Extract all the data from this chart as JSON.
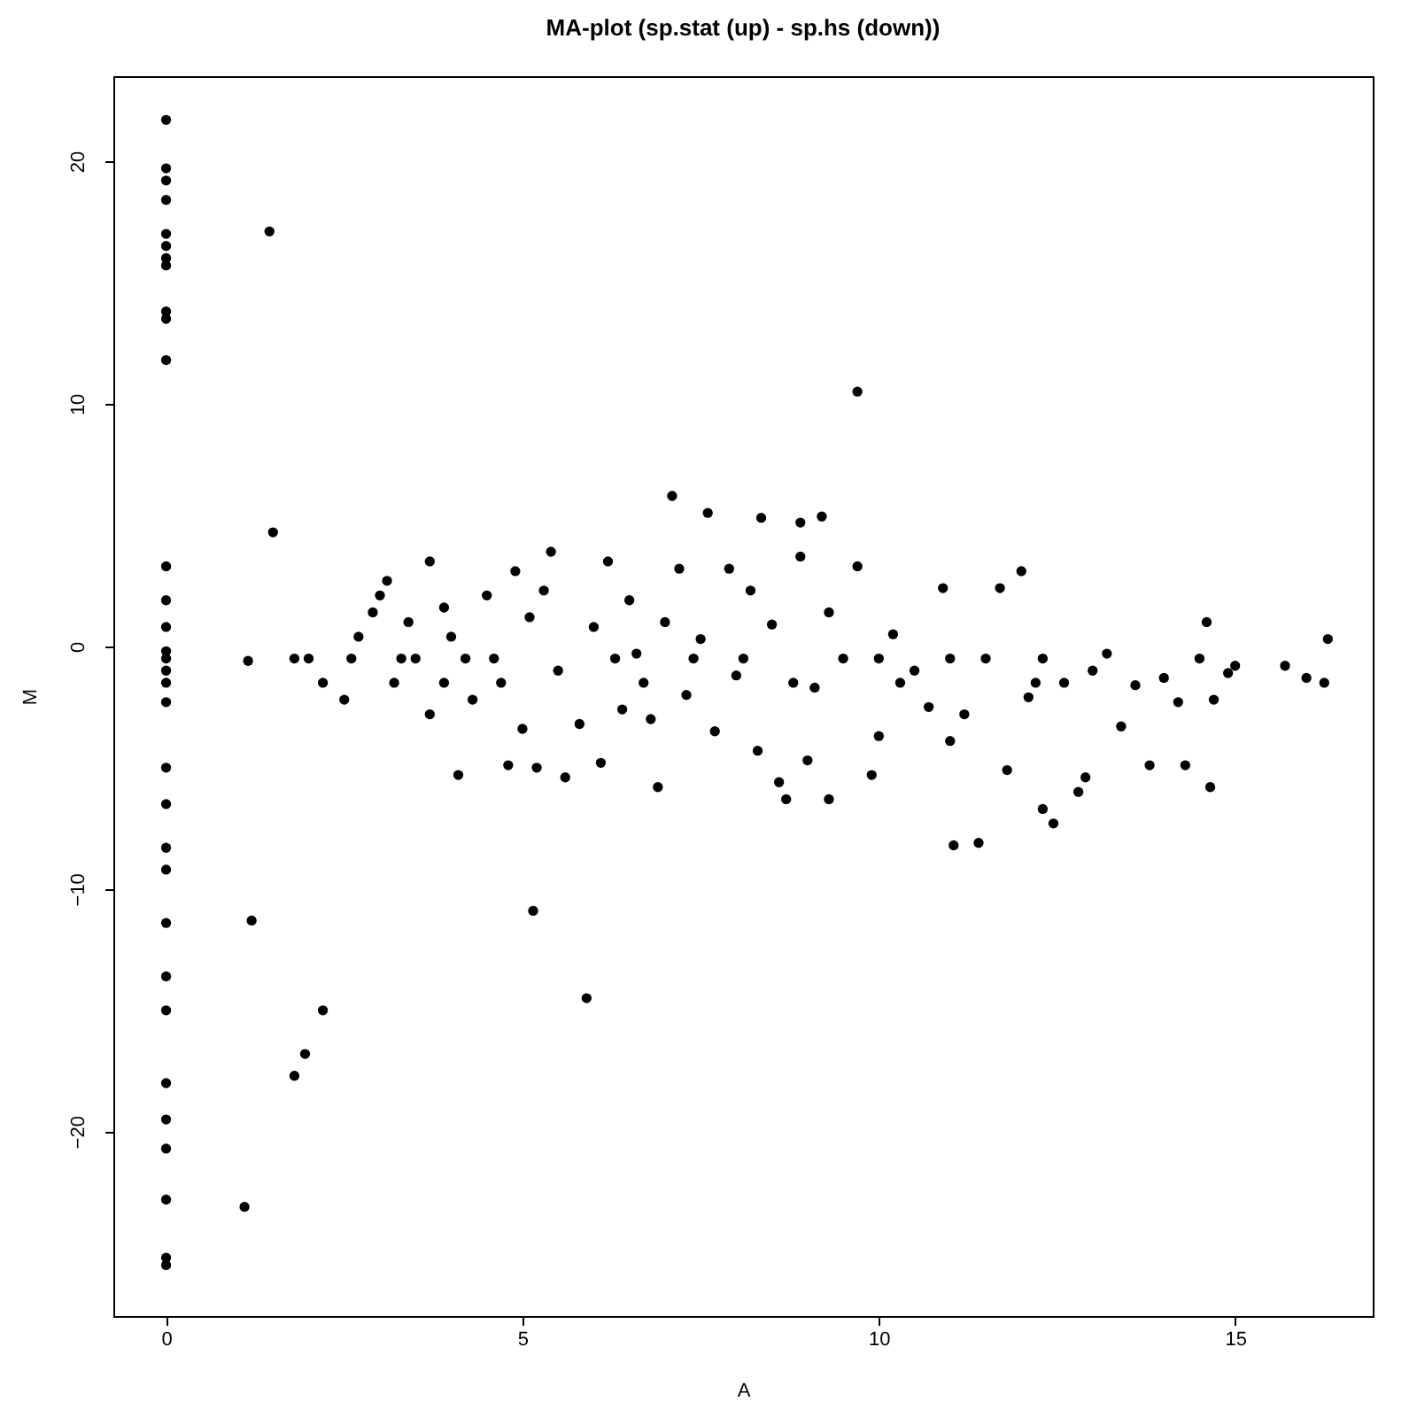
{
  "chart_data": {
    "type": "scatter",
    "title": "MA-plot (sp.stat (up) - sp.hs (down))",
    "xlabel": "A",
    "ylabel": "M",
    "x": [
      0,
      0,
      0,
      0,
      0,
      0,
      0,
      0,
      0,
      0,
      0,
      0,
      0,
      0,
      0,
      0,
      0,
      0,
      0,
      0,
      0,
      0,
      0,
      0,
      0,
      0,
      0,
      0,
      0,
      0,
      0,
      0,
      1.45,
      1.5,
      1.1,
      1.2,
      1.15,
      1.8,
      1.95,
      2.2,
      5.15,
      5.9,
      9.7,
      7.1,
      7.6,
      8.35,
      9.2,
      8.9,
      11.05,
      11.4,
      12.3,
      12.45,
      14.65,
      15.7,
      16.0,
      16.3,
      16.25,
      15.0,
      14.9,
      1.8,
      2.0,
      2.2,
      2.5,
      2.7,
      2.9,
      3.0,
      3.1,
      3.2,
      3.4,
      3.5,
      3.7,
      3.7,
      3.9,
      4.1,
      4.0,
      4.3,
      4.5,
      4.7,
      4.8,
      4.9,
      5.0,
      5.1,
      5.2,
      5.3,
      5.5,
      5.6,
      5.4,
      5.8,
      6.0,
      6.1,
      6.2,
      6.4,
      6.5,
      6.6,
      6.8,
      6.9,
      7.0,
      7.2,
      7.3,
      7.5,
      7.7,
      7.9,
      8.0,
      8.2,
      8.3,
      8.5,
      8.6,
      8.7,
      8.9,
      9.0,
      9.1,
      9.3,
      9.3,
      9.5,
      9.7,
      9.9,
      10.0,
      10.2,
      10.5,
      10.7,
      10.9,
      11.0,
      11.2,
      11.5,
      11.7,
      11.8,
      12.0,
      12.1,
      12.3,
      12.6,
      12.8,
      12.9,
      13.0,
      13.2,
      13.4,
      13.6,
      13.8,
      14.0,
      14.2,
      14.3,
      14.5,
      14.6,
      14.7,
      2.6,
      3.3,
      4.2,
      4.6,
      6.3,
      7.4,
      8.1,
      10.0,
      11.0,
      3.9,
      6.7,
      8.8,
      10.3,
      12.2
    ],
    "values": [
      21.7,
      19.7,
      19.2,
      18.4,
      17,
      16.5,
      16,
      15.7,
      13.8,
      13.5,
      11.8,
      3.3,
      1.9,
      0.8,
      -0.2,
      -0.5,
      -1,
      -1.5,
      -2.3,
      -5,
      -6.5,
      -8.3,
      -9.2,
      -11.4,
      -13.6,
      -15,
      -18,
      -19.5,
      -20.7,
      -22.8,
      -25.2,
      -25.5,
      17.1,
      4.7,
      -23.1,
      -11.3,
      -0.6,
      -17.7,
      -16.8,
      -15,
      -10.9,
      -14.5,
      10.5,
      6.2,
      5.5,
      5.3,
      5.35,
      5.1,
      -8.2,
      -8.1,
      -6.7,
      -7.3,
      -5.8,
      -0.8,
      -1.3,
      0.3,
      -1.5,
      -0.8,
      -1.1,
      -0.5,
      -0.5,
      -1.5,
      -2.2,
      0.4,
      1.4,
      2.1,
      2.7,
      -1.5,
      1.0,
      -0.5,
      3.5,
      -2.8,
      1.6,
      -5.3,
      0.4,
      -2.2,
      2.1,
      -1.5,
      -4.9,
      3.1,
      -3.4,
      1.2,
      -5.0,
      2.3,
      -1.0,
      -5.4,
      3.9,
      -3.2,
      0.8,
      -4.8,
      3.5,
      -2.6,
      1.9,
      -0.3,
      -3.0,
      -5.8,
      1.0,
      3.2,
      -2.0,
      0.3,
      -3.5,
      3.2,
      -1.2,
      2.3,
      -4.3,
      0.9,
      -5.6,
      -6.3,
      3.7,
      -4.7,
      -1.7,
      -6.3,
      1.4,
      -0.5,
      3.3,
      -5.3,
      -3.7,
      0.5,
      -1.0,
      -2.5,
      2.4,
      -3.9,
      -2.8,
      -0.5,
      2.4,
      -5.1,
      3.1,
      -2.1,
      -0.5,
      -1.5,
      -6.0,
      -5.4,
      -1.0,
      -0.3,
      -3.3,
      -1.6,
      -4.9,
      -1.3,
      -2.3,
      -4.9,
      -0.5,
      1.0,
      -2.2,
      -0.5,
      -0.5,
      -0.5,
      -0.5,
      -0.5,
      -0.5,
      -0.5,
      -0.5,
      -0.5,
      -1.5,
      -1.5,
      -1.5,
      -1.5,
      -1.5
    ],
    "color": "#000000",
    "marker": "circle",
    "xlim": [
      -0.74,
      16.93
    ],
    "ylim": [
      -27.6,
      23.5
    ],
    "xticks": [
      0,
      5,
      10,
      15
    ],
    "yticks": [
      -20,
      -10,
      0,
      10,
      20
    ],
    "grid": false
  }
}
